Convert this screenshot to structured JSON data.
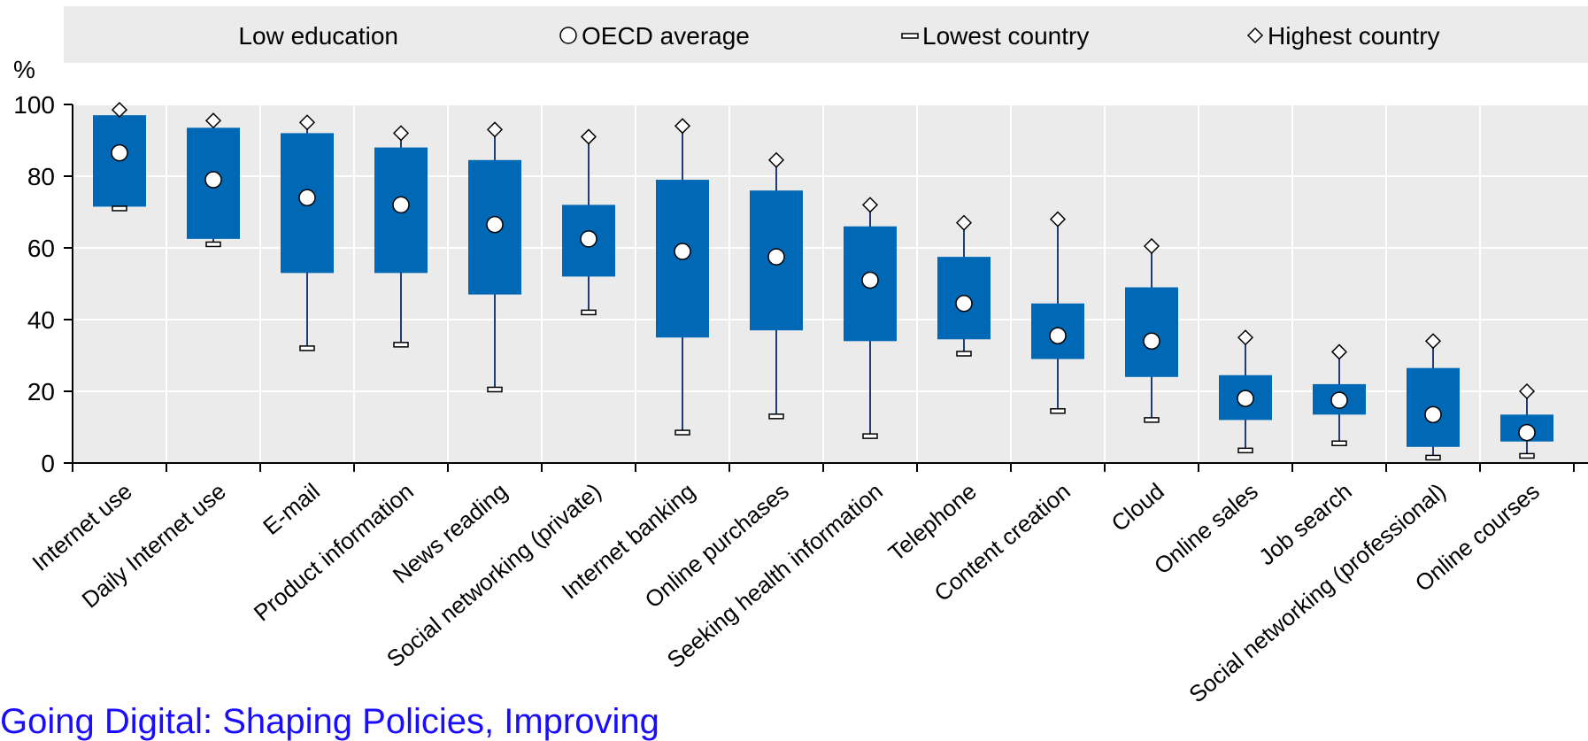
{
  "chart_data": {
    "type": "box",
    "ylabel": "%",
    "ylim": [
      0,
      100
    ],
    "yticks": [
      0,
      20,
      40,
      60,
      80,
      100
    ],
    "grid": true,
    "legend_position": "top",
    "legend": {
      "range": "Low education",
      "average": "OECD average",
      "lowest": "Lowest  country",
      "highest": "Highest country"
    },
    "categories": [
      "Internet use",
      "Daily Internet use",
      "E-mail",
      "Product information",
      "News reading",
      "Social networking (private)",
      "Internet banking",
      "Online purchases",
      "Seeking health information",
      "Telephone",
      "Content creation",
      "Cloud",
      "Online sales",
      "Job search",
      "Social networking (professional)",
      "Online courses"
    ],
    "series": [
      {
        "key": "box_top",
        "values": [
          97,
          93.5,
          92,
          88,
          84.5,
          72,
          79,
          76,
          66,
          57.5,
          44.5,
          49,
          24.5,
          22,
          26.5,
          13.5
        ]
      },
      {
        "key": "box_bottom",
        "values": [
          71.5,
          62.5,
          53,
          53,
          47,
          52,
          35,
          37,
          34,
          34.5,
          29,
          24,
          12,
          13.5,
          4.5,
          6
        ]
      },
      {
        "key": "average",
        "values": [
          86.5,
          79,
          74,
          72,
          66.5,
          62.5,
          59,
          57.5,
          51,
          44.5,
          35.5,
          34,
          18,
          17.5,
          13.5,
          8.5
        ]
      },
      {
        "key": "lowest",
        "values": [
          71,
          61,
          32,
          33,
          20.5,
          42,
          8.5,
          13,
          7.5,
          30.5,
          14.5,
          12,
          3.5,
          5.5,
          1.5,
          2
        ]
      },
      {
        "key": "highest",
        "values": [
          98.5,
          95.5,
          95,
          92,
          93,
          91,
          94,
          84.5,
          72,
          67,
          68,
          60.5,
          35,
          31,
          34,
          20
        ]
      }
    ],
    "colors": {
      "box": "#0068b4",
      "whisker": "#1f3d73",
      "plot_bg": "#ebebeb",
      "legend_bg": "#ebebeb",
      "grid": "#ffffff"
    }
  },
  "footer": {
    "link_text": "Going Digital: Shaping Policies, Improving"
  }
}
